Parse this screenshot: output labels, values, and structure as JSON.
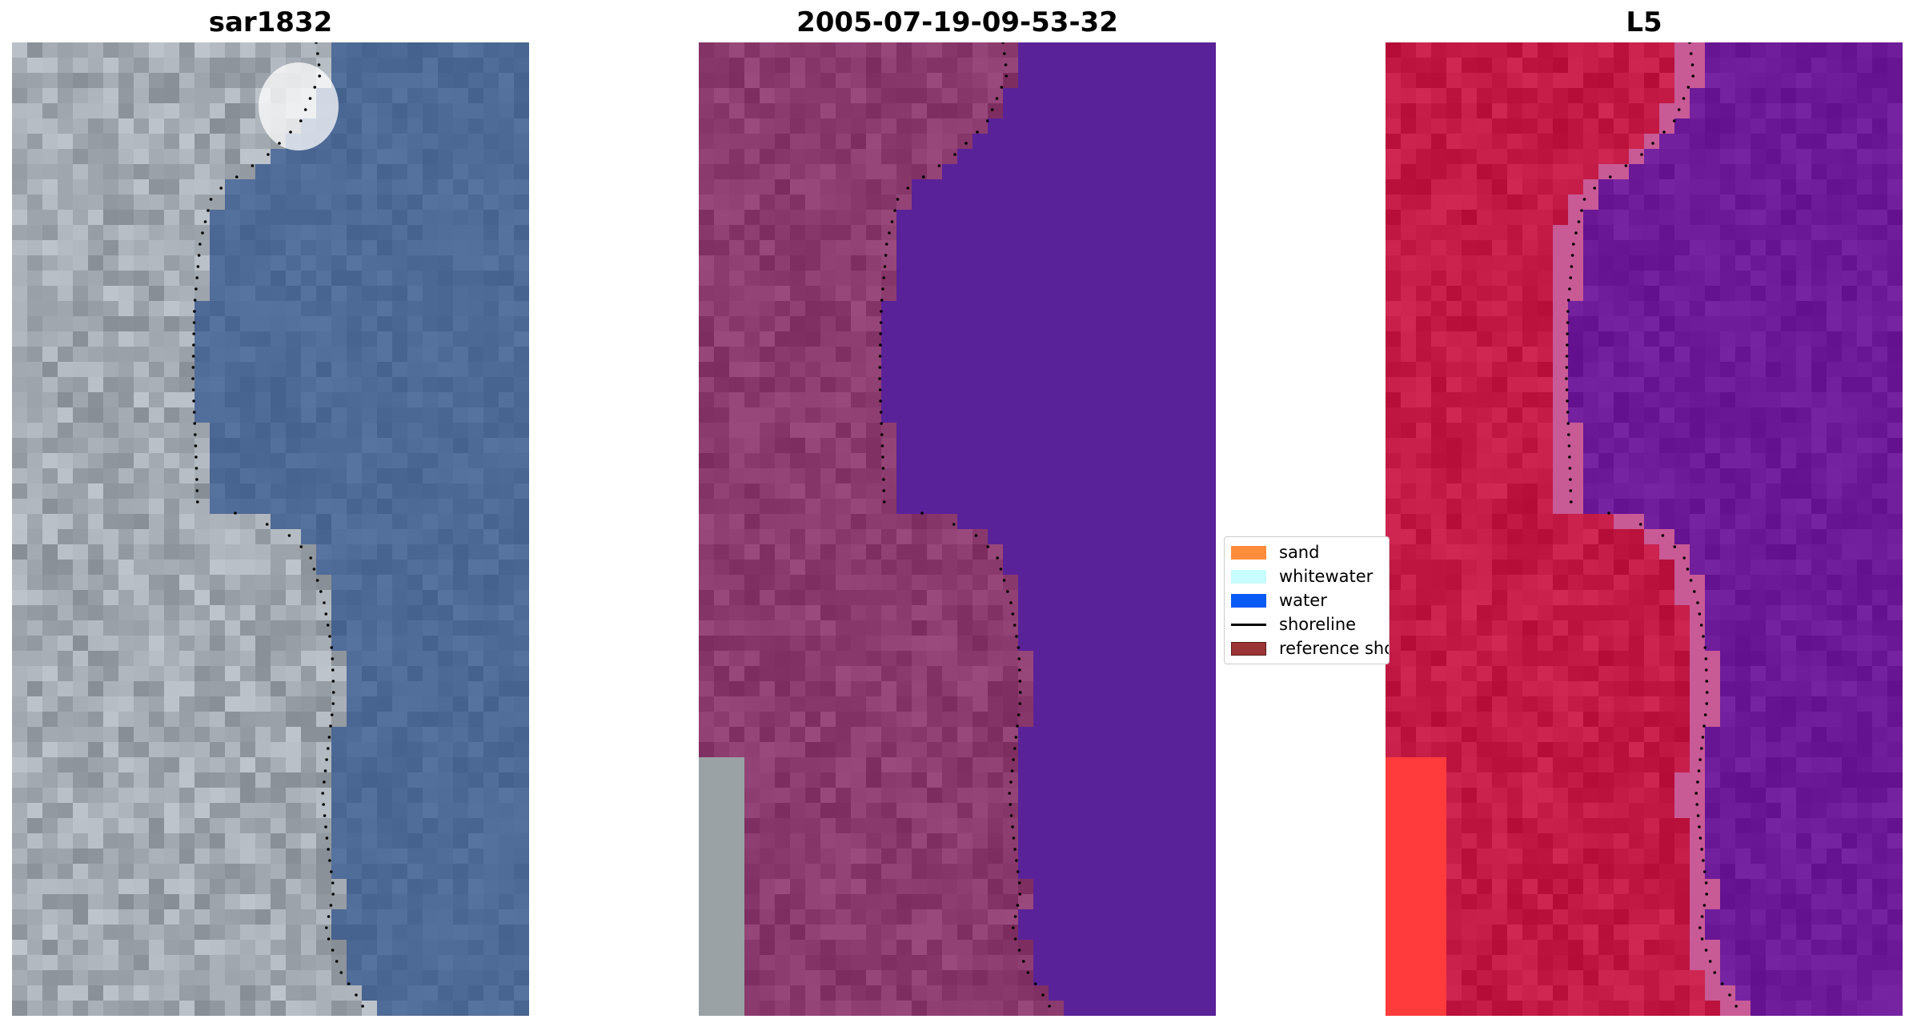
{
  "panels": [
    {
      "title": "sar1832",
      "kind": "rgb"
    },
    {
      "title": "2005-07-19-09-53-32",
      "kind": "classified"
    },
    {
      "title": "L5",
      "kind": "index"
    }
  ],
  "legend": {
    "items": [
      {
        "label": "sand",
        "color": "#ff8c3a",
        "type": "patch"
      },
      {
        "label": "whitewater",
        "color": "#c8fdfd",
        "type": "patch"
      },
      {
        "label": "water",
        "color": "#0a5af5",
        "type": "patch"
      },
      {
        "label": "shoreline",
        "color": "#000000",
        "type": "line"
      },
      {
        "label": "reference shoreline",
        "color": "#9b3434",
        "type": "patch"
      }
    ]
  },
  "colors": {
    "rgb_water": "#4e6a96",
    "rgb_land": "#a3a9b0",
    "classified_water": "#5a2299",
    "classified_land": "#8c3b6e",
    "classified_unclassified": "#9aa2a6",
    "index_water": "#6c1a98",
    "index_land": "#c21a45",
    "index_bright": "#ff3b3b",
    "shoreline_dots": "#000000"
  }
}
